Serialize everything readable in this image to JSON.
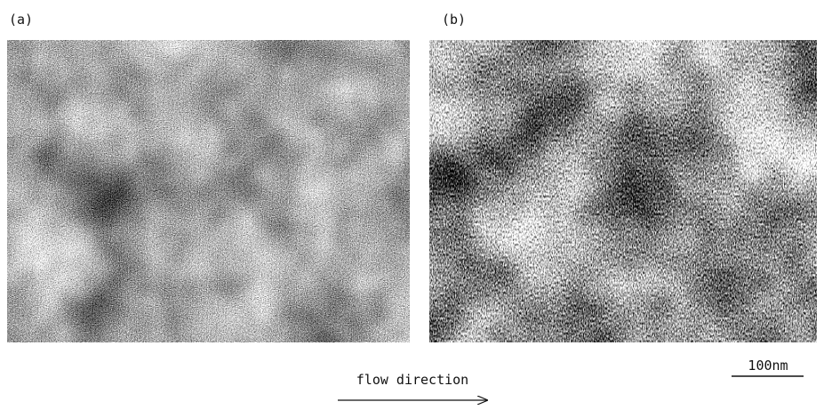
{
  "panels": [
    {
      "label": "(a)"
    },
    {
      "label": "(b)"
    }
  ],
  "annotations": {
    "flow": "flow direction",
    "scale": "100nm"
  }
}
